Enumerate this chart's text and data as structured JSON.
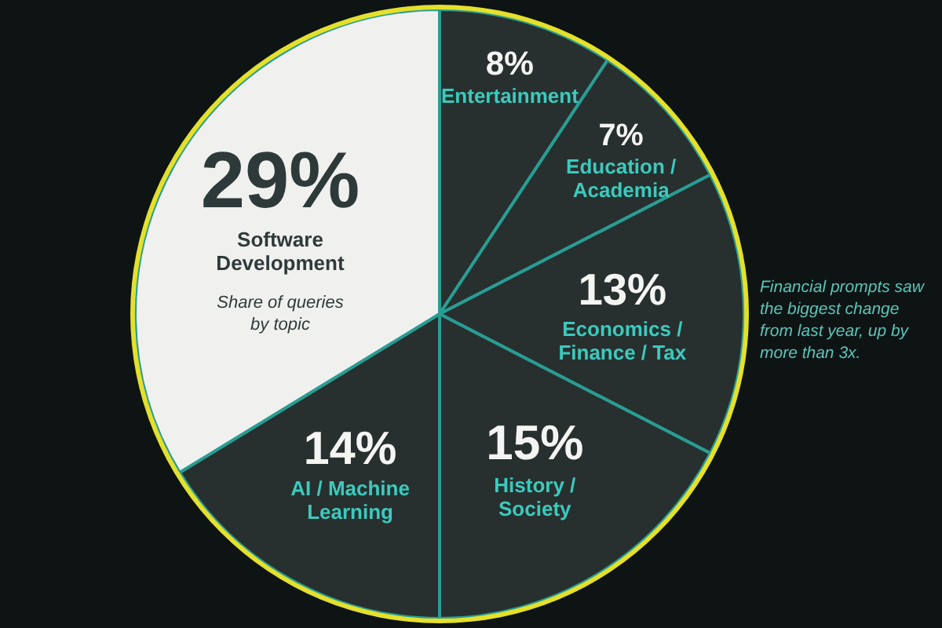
{
  "chart_data": {
    "type": "other",
    "subtitle": "Share of queries by topic",
    "categories": [
      "Software Development",
      "Entertainment",
      "Education / Academia",
      "Economics / Finance / Tax",
      "History / Society",
      "AI / Machine Learning"
    ],
    "values": [
      29,
      8,
      7,
      13,
      15,
      14
    ],
    "value_labels": [
      "29%",
      "8%",
      "7%",
      "13%",
      "15%",
      "14%"
    ],
    "colors": [
      "#f0f0ee",
      "#27302f",
      "#27302f",
      "#27302f",
      "#27302f",
      "#27302f"
    ],
    "annotations": [
      {
        "text": "Financial prompts saw the biggest change from last year, up by more than 3x.",
        "x": "Economics / Finance / Tax"
      }
    ]
  }
}
